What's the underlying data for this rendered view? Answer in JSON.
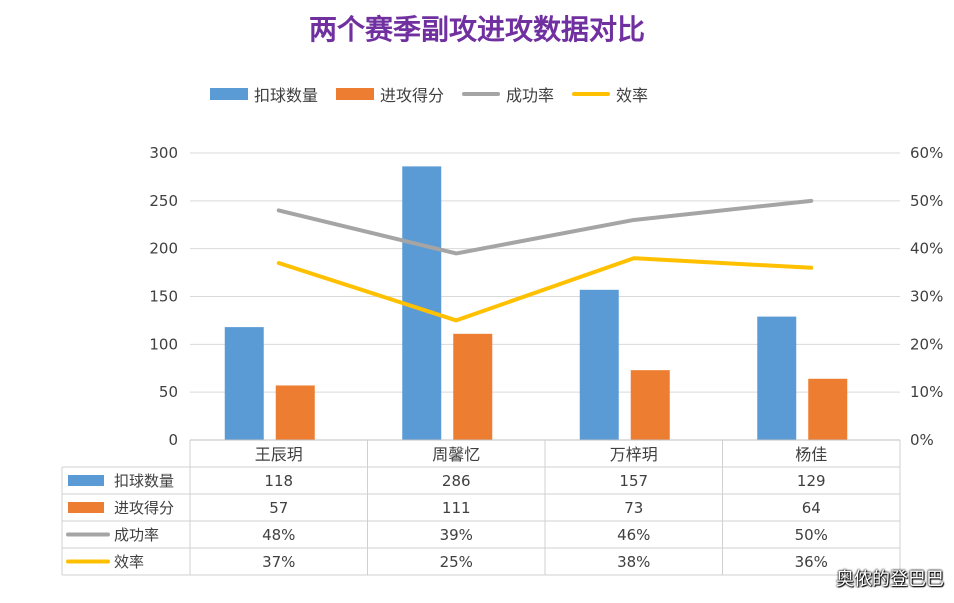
{
  "title": "两个赛季副攻进攻数据对比",
  "watermark": "奥侬的登巴巴",
  "chart_data": {
    "type": "bar",
    "categories": [
      "王辰玥",
      "周馨忆",
      "万梓玥",
      "杨佳"
    ],
    "series": [
      {
        "name": "扣球数量",
        "kind": "bar",
        "axis": "left",
        "color": "#5b9bd5",
        "values": [
          118,
          286,
          157,
          129
        ],
        "labels": [
          "118",
          "286",
          "157",
          "129"
        ]
      },
      {
        "name": "进攻得分",
        "kind": "bar",
        "axis": "left",
        "color": "#ed7d31",
        "values": [
          57,
          111,
          73,
          64
        ],
        "labels": [
          "57",
          "111",
          "73",
          "64"
        ]
      },
      {
        "name": "成功率",
        "kind": "line",
        "axis": "right",
        "color": "#a5a5a5",
        "values": [
          48,
          39,
          46,
          50
        ],
        "labels": [
          "48%",
          "39%",
          "46%",
          "50%"
        ]
      },
      {
        "name": "效率",
        "kind": "line",
        "axis": "right",
        "color": "#ffc000",
        "values": [
          37,
          25,
          38,
          36
        ],
        "labels": [
          "37%",
          "25%",
          "38%",
          "36%"
        ]
      }
    ],
    "ylim": [
      0,
      300
    ],
    "yticks": [
      "0",
      "50",
      "100",
      "150",
      "200",
      "250",
      "300"
    ],
    "y2lim": [
      0,
      60
    ],
    "y2ticks": [
      "0%",
      "10%",
      "20%",
      "30%",
      "40%",
      "50%",
      "60%"
    ],
    "grid": true,
    "legend": "top",
    "data_table": true
  }
}
